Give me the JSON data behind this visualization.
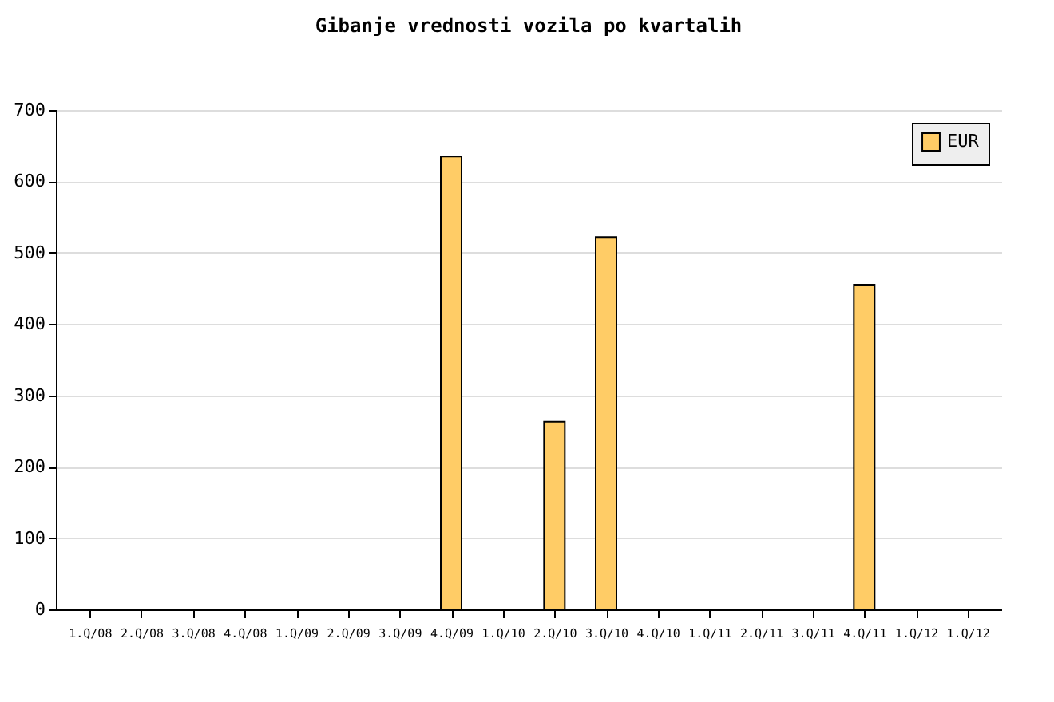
{
  "chart_data": {
    "type": "bar",
    "title": "Gibanje vrednosti vozila po kvartalih",
    "categories": [
      "1.Q/08",
      "2.Q/08",
      "3.Q/08",
      "4.Q/08",
      "1.Q/09",
      "2.Q/09",
      "3.Q/09",
      "4.Q/09",
      "1.Q/10",
      "2.Q/10",
      "3.Q/10",
      "4.Q/10",
      "1.Q/11",
      "2.Q/11",
      "3.Q/11",
      "4.Q/11",
      "1.Q/12",
      "1.Q/12"
    ],
    "series": [
      {
        "name": "EUR",
        "color": "#ffcc66",
        "values": [
          null,
          null,
          null,
          null,
          null,
          null,
          null,
          635,
          null,
          263,
          522,
          null,
          null,
          null,
          null,
          455,
          null,
          null
        ]
      }
    ],
    "ylim": [
      0,
      700
    ],
    "yticks": [
      0,
      100,
      200,
      300,
      400,
      500,
      600,
      700
    ],
    "grid": "y",
    "legend": "top right"
  }
}
